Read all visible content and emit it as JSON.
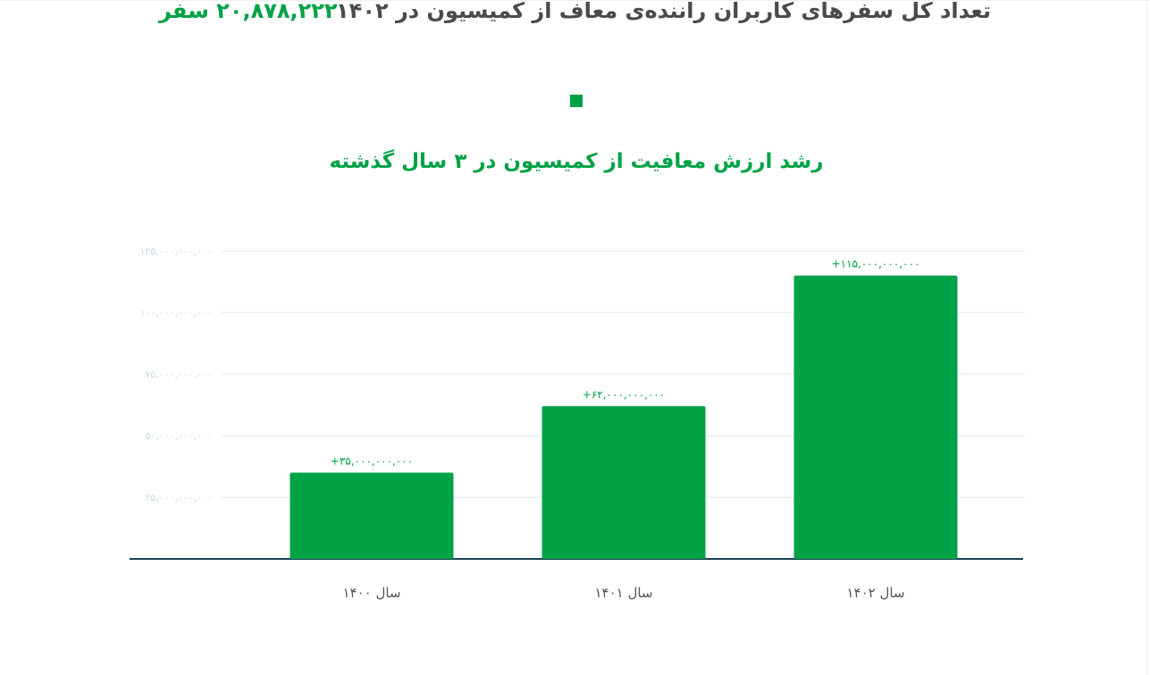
{
  "header": {
    "label": "تعداد کل سفرهای کاربران راننده‌ی معاف از کمیسیون در ۱۴۰۲",
    "value": "۲۰,۸۷۸,۲۲۲ سفر"
  },
  "chart_data": {
    "type": "bar",
    "title": "رشد ارزش معافیت از کمیسیون در ۳ سال گذشته",
    "categories": [
      "سال ۱۴۰۰",
      "سال ۱۴۰۱",
      "سال ۱۴۰۲"
    ],
    "values": [
      35000000000,
      62000000000,
      115000000000
    ],
    "data_labels": [
      "+۳۵,۰۰۰,۰۰۰,۰۰۰",
      "+۶۲,۰۰۰,۰۰۰,۰۰۰",
      "+۱۱۵,۰۰۰,۰۰۰,۰۰۰"
    ],
    "y_ticks": [
      25000000000,
      50000000000,
      75000000000,
      100000000000,
      125000000000
    ],
    "y_tick_labels": [
      "۲۵,۰۰۰,۰۰۰,۰۰۰",
      "۵۰,۰۰۰,۰۰۰,۰۰۰",
      "۷۵,۰۰۰,۰۰۰,۰۰۰",
      "۱۰۰,۰۰۰,۰۰۰,۰۰۰",
      "۱۲۵,۰۰۰,۰۰۰,۰۰۰"
    ],
    "ylim": [
      0,
      125000000000
    ],
    "grid": true,
    "legend": "none",
    "xlabel": "",
    "ylabel": "",
    "colors": {
      "bar": "#00a246",
      "grid": "#dde9f1",
      "axis": "#1f3f57"
    }
  }
}
